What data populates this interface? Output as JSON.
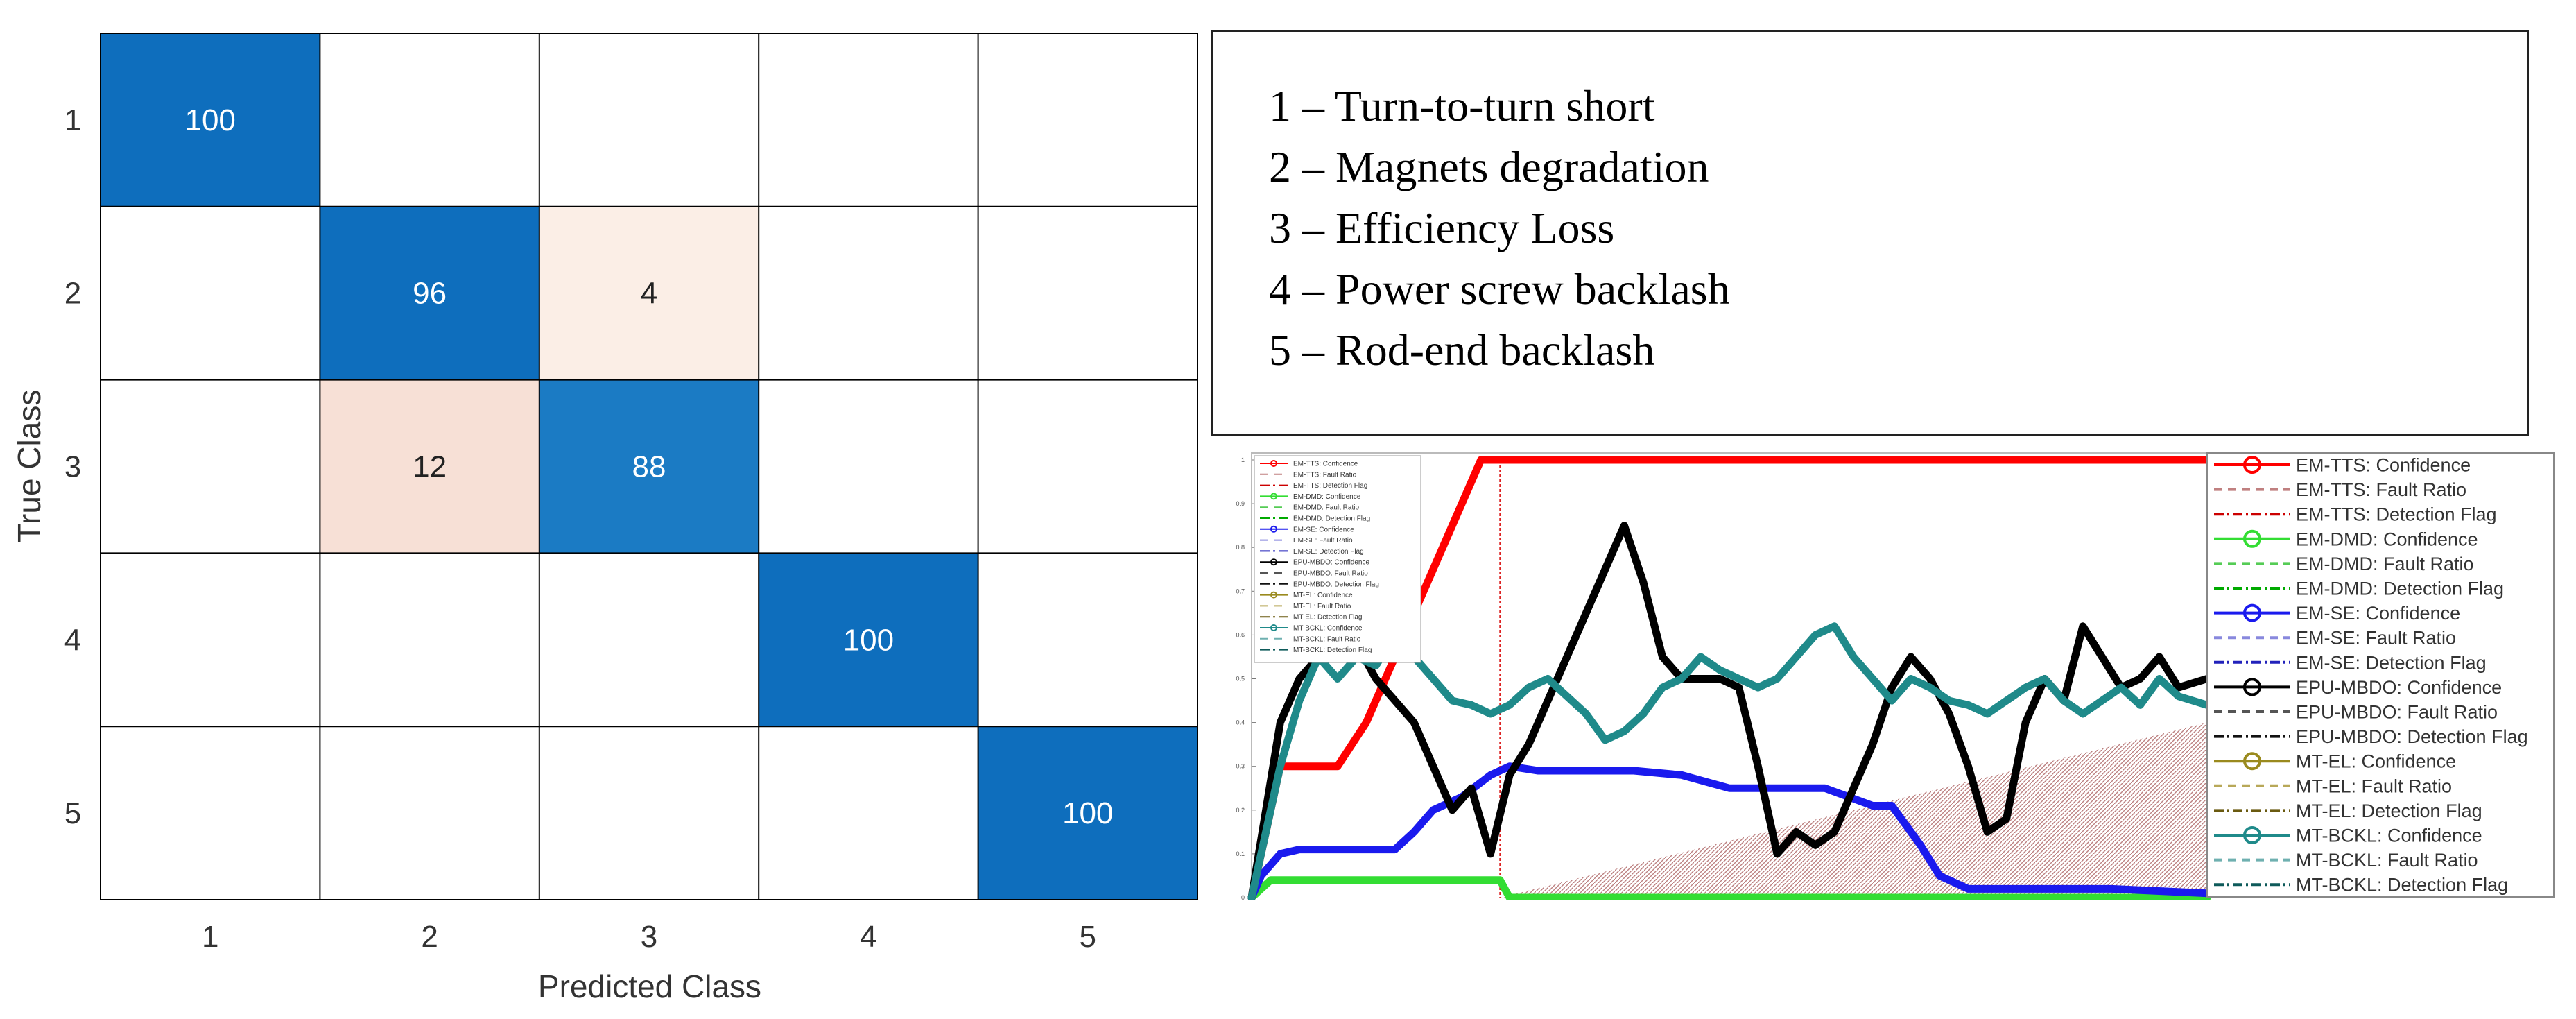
{
  "chart_data": [
    {
      "type": "heatmap",
      "title": "",
      "xlabel": "Predicted Class",
      "ylabel": "True Class",
      "x_categories": [
        "1",
        "2",
        "3",
        "4",
        "5"
      ],
      "y_categories": [
        "1",
        "2",
        "3",
        "4",
        "5"
      ],
      "values": [
        [
          100,
          null,
          null,
          null,
          null
        ],
        [
          null,
          96,
          4,
          null,
          null
        ],
        [
          null,
          12,
          88,
          null,
          null
        ],
        [
          null,
          null,
          null,
          100,
          null
        ],
        [
          null,
          null,
          null,
          null,
          100
        ]
      ],
      "colors": {
        "diagonal_high": "#0e6ebd",
        "diagonal_mid": "#1b7bc4",
        "offdiag_low": "#fbeee6",
        "offdiag_mid": "#f7e0d6",
        "grid": "#000000"
      }
    },
    {
      "type": "line",
      "title": "",
      "xlabel": "",
      "ylabel": "",
      "ylim": [
        0,
        1
      ],
      "legend_position": "right",
      "series": [
        {
          "name": "EM-TTS: Confidence",
          "color": "#ff0000",
          "style": "solid-marker",
          "x": [
            0,
            3,
            6,
            9,
            12,
            14,
            16,
            18,
            20,
            22,
            24,
            25,
            26,
            30,
            40,
            60,
            100
          ],
          "y": [
            0,
            0.3,
            0.3,
            0.3,
            0.4,
            0.5,
            0.6,
            0.7,
            0.8,
            0.9,
            1.0,
            1.0,
            1.0,
            1.0,
            1.0,
            1.0,
            1.0
          ]
        },
        {
          "name": "EM-TTS: Fault Ratio",
          "color": "#c08080",
          "style": "dashed",
          "x": [],
          "y": []
        },
        {
          "name": "EM-TTS: Detection Flag",
          "color": "#cc0000",
          "style": "dash-dot",
          "x": [],
          "y": []
        },
        {
          "name": "EM-DMD: Confidence",
          "color": "#33dd33",
          "style": "solid-marker",
          "x": [
            0,
            1,
            2,
            5,
            10,
            15,
            20,
            25,
            26,
            27,
            40,
            60,
            100
          ],
          "y": [
            0,
            0.02,
            0.04,
            0.04,
            0.04,
            0.04,
            0.04,
            0.04,
            0.04,
            0.0,
            0.0,
            0.0,
            0.0
          ]
        },
        {
          "name": "EM-DMD: Fault Ratio",
          "color": "#55cc55",
          "style": "dashed",
          "x": [],
          "y": []
        },
        {
          "name": "EM-DMD: Detection Flag",
          "color": "#00aa00",
          "style": "dash-dot",
          "x": [],
          "y": []
        },
        {
          "name": "EM-SE: Confidence",
          "color": "#1a1aee",
          "style": "solid-marker",
          "x": [
            0,
            1,
            3,
            5,
            10,
            15,
            17,
            19,
            20,
            22,
            25,
            27,
            30,
            35,
            40,
            45,
            50,
            55,
            60,
            65,
            67,
            70,
            72,
            75,
            80,
            90,
            100
          ],
          "y": [
            0,
            0.05,
            0.1,
            0.11,
            0.11,
            0.11,
            0.15,
            0.2,
            0.21,
            0.23,
            0.28,
            0.3,
            0.29,
            0.29,
            0.29,
            0.28,
            0.25,
            0.25,
            0.25,
            0.21,
            0.21,
            0.12,
            0.05,
            0.02,
            0.02,
            0.02,
            0.01
          ]
        },
        {
          "name": "EM-SE: Fault Ratio",
          "color": "#8888dd",
          "style": "dashed",
          "x": [],
          "y": []
        },
        {
          "name": "EM-SE: Detection Flag",
          "color": "#2222bb",
          "style": "dash-dot",
          "x": [],
          "y": []
        },
        {
          "name": "EPU-MBDO: Confidence",
          "color": "#000000",
          "style": "solid-marker",
          "x": [
            0,
            3,
            5,
            7,
            9,
            11,
            13,
            15,
            17,
            19,
            21,
            23,
            25,
            27,
            29,
            31,
            33,
            35,
            37,
            39,
            41,
            43,
            45,
            47,
            49,
            51,
            53,
            55,
            57,
            59,
            61,
            63,
            65,
            67,
            69,
            71,
            73,
            75,
            77,
            79,
            81,
            83,
            85,
            87,
            89,
            91,
            93,
            95,
            97,
            100
          ],
          "y": [
            0,
            0.4,
            0.5,
            0.55,
            0.6,
            0.58,
            0.5,
            0.45,
            0.4,
            0.3,
            0.2,
            0.25,
            0.1,
            0.28,
            0.35,
            0.45,
            0.55,
            0.65,
            0.75,
            0.85,
            0.72,
            0.55,
            0.5,
            0.5,
            0.5,
            0.48,
            0.3,
            0.1,
            0.15,
            0.12,
            0.15,
            0.25,
            0.35,
            0.48,
            0.55,
            0.5,
            0.42,
            0.3,
            0.15,
            0.18,
            0.4,
            0.5,
            0.45,
            0.62,
            0.55,
            0.48,
            0.5,
            0.55,
            0.48,
            0.5
          ]
        },
        {
          "name": "EPU-MBDO: Fault Ratio",
          "color": "#555555",
          "style": "dashed",
          "x": [],
          "y": []
        },
        {
          "name": "EPU-MBDO: Detection Flag",
          "color": "#111111",
          "style": "dash-dot",
          "x": [],
          "y": []
        },
        {
          "name": "MT-EL: Confidence",
          "color": "#9a8a1e",
          "style": "solid-marker",
          "x": [],
          "y": []
        },
        {
          "name": "MT-EL: Fault Ratio",
          "color": "#b8a858",
          "style": "dashed",
          "x": [],
          "y": []
        },
        {
          "name": "MT-EL: Detection Flag",
          "color": "#6a5a10",
          "style": "dash-dot",
          "x": [],
          "y": []
        },
        {
          "name": "MT-BCKL: Confidence",
          "color": "#1f8a8a",
          "style": "solid-marker",
          "x": [
            0,
            3,
            5,
            7,
            9,
            11,
            13,
            15,
            17,
            19,
            21,
            23,
            25,
            27,
            29,
            31,
            33,
            35,
            37,
            39,
            41,
            43,
            45,
            47,
            49,
            51,
            53,
            55,
            57,
            59,
            61,
            63,
            65,
            67,
            69,
            71,
            73,
            75,
            77,
            79,
            81,
            83,
            85,
            87,
            89,
            91,
            93,
            95,
            97,
            100
          ],
          "y": [
            0,
            0.3,
            0.45,
            0.55,
            0.5,
            0.55,
            0.53,
            0.6,
            0.55,
            0.5,
            0.45,
            0.44,
            0.42,
            0.44,
            0.48,
            0.5,
            0.46,
            0.42,
            0.36,
            0.38,
            0.42,
            0.48,
            0.5,
            0.55,
            0.52,
            0.5,
            0.48,
            0.5,
            0.55,
            0.6,
            0.62,
            0.55,
            0.5,
            0.45,
            0.5,
            0.48,
            0.45,
            0.44,
            0.42,
            0.45,
            0.48,
            0.5,
            0.45,
            0.42,
            0.45,
            0.48,
            0.44,
            0.5,
            0.46,
            0.44
          ]
        },
        {
          "name": "MT-BCKL: Fault Ratio",
          "color": "#6fb0b0",
          "style": "dashed",
          "x": [],
          "y": []
        },
        {
          "name": "MT-BCKL: Detection Flag",
          "color": "#0e5a5a",
          "style": "dash-dot",
          "x": [],
          "y": []
        }
      ],
      "fault_ratio_band": {
        "x_start": 26,
        "x_end": 100,
        "y_end": 0.4,
        "color": "#b06a6a"
      },
      "vertical_marker_x": 26
    }
  ],
  "class_legend": [
    "1 – Turn-to-turn short",
    "2 – Magnets degradation",
    "3 – Efficiency Loss",
    "4 – Power screw backlash",
    "5 – Rod-end backlash"
  ]
}
